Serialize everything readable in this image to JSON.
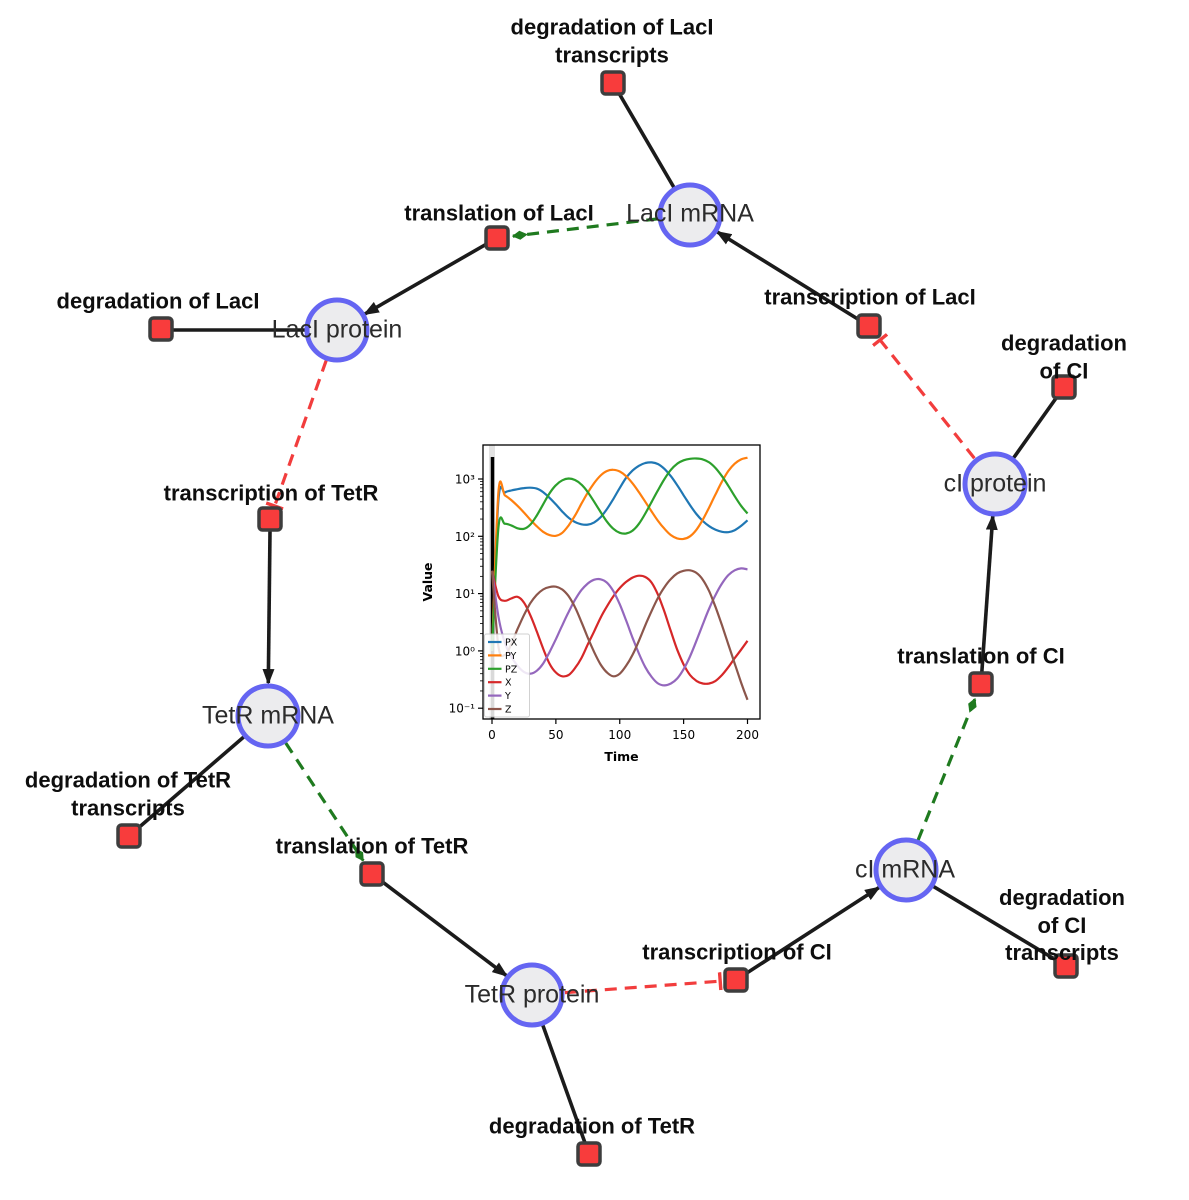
{
  "diagram": {
    "species": [
      {
        "label": "LacI mRNA"
      },
      {
        "label": "LacI protein"
      },
      {
        "label": "TetR mRNA"
      },
      {
        "label": "TetR protein"
      },
      {
        "label": "cI mRNA"
      },
      {
        "label": "cI protein"
      }
    ],
    "reactions": [
      {
        "label": "degradation of LacI\ntranscripts"
      },
      {
        "label": "translation of LacI"
      },
      {
        "label": "degradation of LacI"
      },
      {
        "label": "transcription of TetR"
      },
      {
        "label": "degradation of TetR\ntranscripts"
      },
      {
        "label": "translation of TetR"
      },
      {
        "label": "degradation of TetR"
      },
      {
        "label": "transcription of CI"
      },
      {
        "label": "degradation of CI\ntranscripts"
      },
      {
        "label": "translation of CI"
      },
      {
        "label": "degradation of CI"
      },
      {
        "label": "transcription of LacI"
      }
    ],
    "edges": [
      {
        "from": "LacI mRNA",
        "to": "degradation of LacI transcripts",
        "type": "consumption"
      },
      {
        "from": "LacI mRNA",
        "to": "translation of LacI",
        "type": "modifier"
      },
      {
        "from": "translation of LacI",
        "to": "LacI protein",
        "type": "production"
      },
      {
        "from": "LacI protein",
        "to": "degradation of LacI",
        "type": "consumption"
      },
      {
        "from": "LacI protein",
        "to": "transcription of TetR",
        "type": "inhibition"
      },
      {
        "from": "transcription of TetR",
        "to": "TetR mRNA",
        "type": "production"
      },
      {
        "from": "TetR mRNA",
        "to": "degradation of TetR transcripts",
        "type": "consumption"
      },
      {
        "from": "TetR mRNA",
        "to": "translation of TetR",
        "type": "modifier"
      },
      {
        "from": "translation of TetR",
        "to": "TetR protein",
        "type": "production"
      },
      {
        "from": "TetR protein",
        "to": "degradation of TetR",
        "type": "consumption"
      },
      {
        "from": "TetR protein",
        "to": "transcription of CI",
        "type": "inhibition"
      },
      {
        "from": "transcription of CI",
        "to": "cI mRNA",
        "type": "production"
      },
      {
        "from": "cI mRNA",
        "to": "degradation of CI transcripts",
        "type": "consumption"
      },
      {
        "from": "cI mRNA",
        "to": "translation of CI",
        "type": "modifier"
      },
      {
        "from": "translation of CI",
        "to": "cI protein",
        "type": "production"
      },
      {
        "from": "cI protein",
        "to": "degradation of CI",
        "type": "consumption"
      },
      {
        "from": "cI protein",
        "to": "transcription of LacI",
        "type": "inhibition"
      }
    ],
    "colors": {
      "species_fill": "#ececee",
      "species_ring": "#6565f2",
      "reaction_fill": "#f83c3c",
      "reaction_border": "#3d3d3d",
      "production_edge": "#1b1b1b",
      "modifier_edge": "#1f7a1f",
      "inhibition_edge": "#f23d3d"
    }
  },
  "chart_data": {
    "type": "line",
    "title": "",
    "xlabel": "Time",
    "ylabel": "Value",
    "x_range": [
      0,
      200
    ],
    "y_scale": "log",
    "y_range": [
      0.1,
      1000
    ],
    "x_ticks": [
      0,
      50,
      100,
      150,
      200
    ],
    "y_ticks": [
      "10³",
      "10²",
      "10¹",
      "10⁰",
      "10⁻¹"
    ],
    "legend_position": "lower-left",
    "event_line_x": 0,
    "x": [
      0,
      5,
      10,
      15,
      20,
      25,
      30,
      35,
      40,
      45,
      50,
      55,
      60,
      65,
      70,
      75,
      80,
      85,
      90,
      95,
      100,
      105,
      110,
      115,
      120,
      125,
      130,
      135,
      140,
      145,
      150,
      155,
      160,
      165,
      170,
      175,
      180,
      185,
      190,
      195,
      200
    ],
    "series": [
      {
        "name": "PX",
        "color": "#1f77b4",
        "values": [
          1,
          420,
          580,
          630,
          665,
          695,
          705,
          680,
          590,
          470,
          360,
          270,
          210,
          178,
          162,
          160,
          175,
          215,
          300,
          450,
          700,
          1050,
          1400,
          1700,
          1900,
          1950,
          1820,
          1500,
          1120,
          780,
          520,
          350,
          245,
          185,
          150,
          130,
          120,
          118,
          128,
          152,
          190
        ]
      },
      {
        "name": "PY",
        "color": "#ff7f0e",
        "values": [
          1,
          580,
          520,
          430,
          340,
          260,
          195,
          150,
          120,
          105,
          102,
          115,
          155,
          230,
          370,
          580,
          850,
          1150,
          1380,
          1450,
          1350,
          1120,
          840,
          590,
          400,
          270,
          185,
          135,
          105,
          92,
          90,
          100,
          130,
          195,
          320,
          540,
          900,
          1380,
          1850,
          2200,
          2350
        ]
      },
      {
        "name": "PZ",
        "color": "#2ca02c",
        "values": [
          1,
          140,
          165,
          155,
          138,
          135,
          160,
          230,
          360,
          560,
          780,
          950,
          1020,
          960,
          800,
          590,
          400,
          265,
          180,
          135,
          115,
          112,
          125,
          165,
          250,
          400,
          640,
          1000,
          1450,
          1850,
          2120,
          2250,
          2280,
          2200,
          1950,
          1550,
          1120,
          760,
          500,
          340,
          250
        ]
      },
      {
        "name": "X",
        "color": "#d62728",
        "values": [
          25,
          9,
          7.5,
          8.2,
          8.8,
          7,
          4.2,
          2.2,
          1.1,
          0.6,
          0.42,
          0.36,
          0.38,
          0.5,
          0.75,
          1.3,
          2.2,
          3.8,
          6,
          9,
          12.5,
          16,
          19,
          20.5,
          19.5,
          15.5,
          9.5,
          4.8,
          2.2,
          1.05,
          0.58,
          0.38,
          0.3,
          0.27,
          0.27,
          0.3,
          0.38,
          0.52,
          0.75,
          1.05,
          1.5
        ]
      },
      {
        "name": "Y",
        "color": "#9467bd",
        "values": [
          25,
          4,
          1.4,
          0.8,
          0.55,
          0.43,
          0.4,
          0.45,
          0.6,
          0.95,
          1.6,
          2.8,
          4.8,
          7.8,
          11.5,
          15,
          17.5,
          17.8,
          15.5,
          11,
          6.5,
          3.4,
          1.7,
          0.9,
          0.52,
          0.35,
          0.27,
          0.25,
          0.27,
          0.33,
          0.48,
          0.8,
          1.5,
          2.9,
          5.5,
          9.5,
          15,
          21,
          25.5,
          27.5,
          26.5
        ]
      },
      {
        "name": "Z",
        "color": "#8c564b",
        "values": [
          25,
          1.2,
          0.85,
          1.3,
          2.4,
          4.2,
          6.8,
          9.5,
          11.8,
          13,
          13.2,
          11.8,
          9,
          5.8,
          3.2,
          1.7,
          0.95,
          0.58,
          0.42,
          0.36,
          0.4,
          0.55,
          0.85,
          1.5,
          2.8,
          5,
          8.5,
          13,
          18,
          22.5,
          25,
          25.5,
          23,
          17.5,
          11,
          5.8,
          2.8,
          1.3,
          0.6,
          0.28,
          0.14
        ]
      }
    ]
  }
}
